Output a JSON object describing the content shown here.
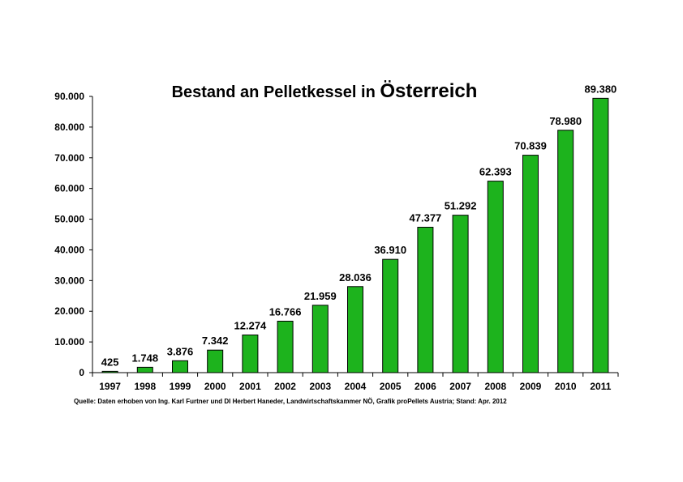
{
  "chart_data": {
    "type": "bar",
    "title_prefix": "Bestand an Pelletkessel in",
    "title_country": "Österreich",
    "categories": [
      "1997",
      "1998",
      "1999",
      "2000",
      "2001",
      "2002",
      "2003",
      "2004",
      "2005",
      "2006",
      "2007",
      "2008",
      "2009",
      "2010",
      "2011"
    ],
    "values": [
      425,
      1748,
      3876,
      7342,
      12274,
      16766,
      21959,
      28036,
      36910,
      47377,
      51292,
      62393,
      70839,
      78980,
      89380
    ],
    "data_labels": [
      "425",
      "1.748",
      "3.876",
      "7.342",
      "12.274",
      "16.766",
      "21.959",
      "28.036",
      "36.910",
      "47.377",
      "51.292",
      "62.393",
      "70.839",
      "78.980",
      "89.380"
    ],
    "y_ticks": [
      0,
      10000,
      20000,
      30000,
      40000,
      50000,
      60000,
      70000,
      80000,
      90000
    ],
    "y_tick_labels": [
      "0",
      "10.000",
      "20.000",
      "30.000",
      "40.000",
      "50.000",
      "60.000",
      "70.000",
      "80.000",
      "90.000"
    ],
    "ylim": [
      0,
      90000
    ],
    "xlabel": "",
    "ylabel": "",
    "grid": false,
    "bar_color": "#1db31d",
    "bar_outline": "#000000"
  },
  "footer": {
    "source": "Quelle: Daten erhoben von Ing. Karl Furtner und DI Herbert Haneder, Landwirtschaftskammer NÖ,  Grafik proPellets Austria; Stand: Apr. 2012"
  }
}
